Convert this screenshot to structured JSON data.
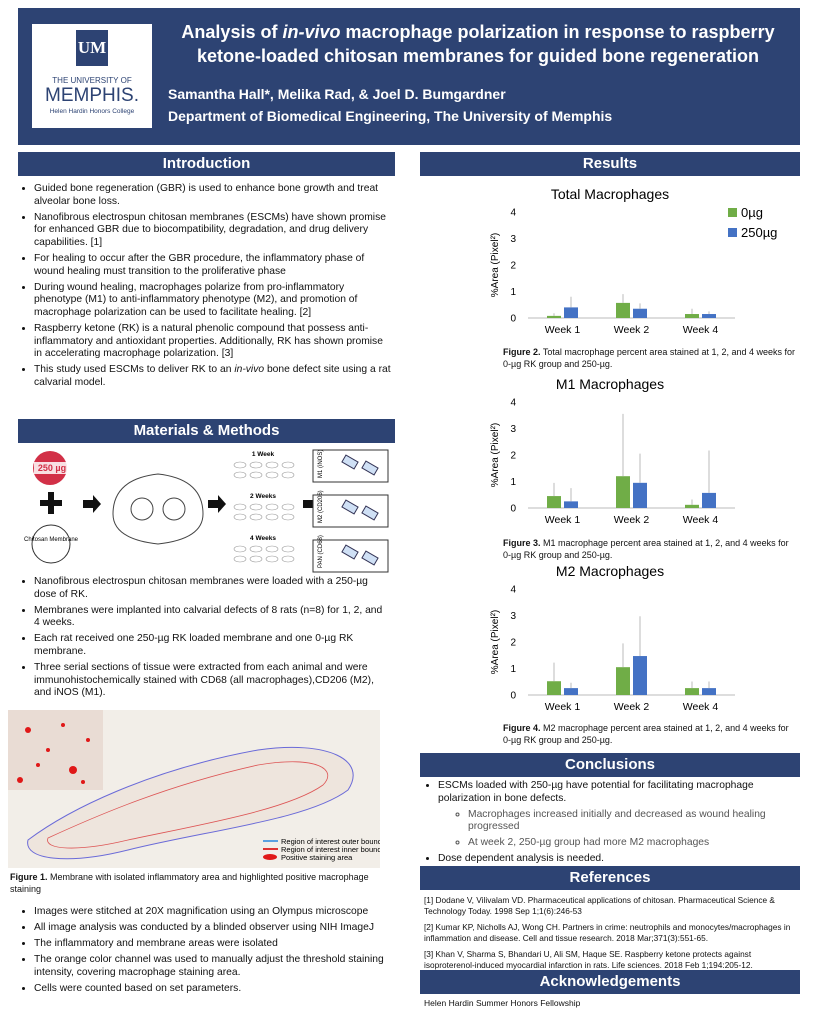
{
  "header": {
    "logo": {
      "mark": "UM",
      "line1": "THE UNIVERSITY OF",
      "line2": "MEMPHIS.",
      "line3": "Helen Hardin Honors College"
    },
    "title": [
      "Analysis of ",
      "in-vivo",
      " macrophage polarization in response to raspberry ketone-loaded chitosan membranes for guided bone regeneration"
    ],
    "authors": "Samantha Hall*, Melika Rad, & Joel D. Bumgardner",
    "affiliation": "Department of Biomedical Engineering, The University of Memphis"
  },
  "introduction": {
    "heading": "Introduction",
    "bullets": [
      "Guided bone regeneration (GBR) is used to enhance bone growth and treat alveolar bone loss.",
      "Nanofibrous electrospun chitosan membranes (ESCMs) have shown promise for enhanced GBR due to biocompatibility, degradation, and drug delivery capabilities. [1]",
      "For healing to occur after the GBR procedure, the inflammatory phase of wound healing must transition to the proliferative phase",
      "During wound healing, macrophages polarize from pro-inflammatory phenotype (M1) to anti-inflammatory phenotype (M2), and promotion of macrophage polarization can be used to facilitate healing. [2]",
      "Raspberry ketone (RK) is a natural phenolic compound that possess anti-inflammatory and antioxidant properties. Additionally, RK has shown promise in accelerating macrophage polarization. [3]",
      [
        "This study used ESCMs to deliver RK to an ",
        "in-vivo",
        " bone defect site using a rat calvarial model."
      ]
    ]
  },
  "methods": {
    "heading": "Materials & Methods",
    "diagram": {
      "dose": "250 µg",
      "membrane": "Chitosan Membrane",
      "weeks": [
        "1 Week",
        "2 Weeks",
        "4 Weeks"
      ],
      "stains": [
        "M1 (iNOS)",
        "M2 (CD206)",
        "PAN (CD68)"
      ]
    },
    "bullets": [
      "Nanofibrous electrospun chitosan membranes were loaded with a 250-µg dose of RK.",
      "Membranes were implanted into calvarial defects of 8 rats (n=8) for 1, 2, and 4 weeks.",
      "Each rat received one 250-µg RK loaded membrane and one 0-µg RK membrane.",
      "Three serial sections of tissue were extracted from each animal and were immunohistochemically stained with CD68 (all macrophages),CD206 (M2), and iNOS (M1)."
    ],
    "figure": {
      "legend": [
        "Region of interest outer boundary",
        "Region of interest inner boundary",
        "Positive staining area"
      ],
      "label": "Figure 1.",
      "caption": " Membrane with isolated inflammatory area and highlighted positive macrophage staining"
    },
    "bullets2": [
      "Images were stitched at 20X magnification using an Olympus microscope",
      "All image analysis was conducted by a blinded observer using NIH ImageJ",
      "The inflammatory and membrane areas were isolated",
      "The orange color channel was used to manually adjust the threshold staining intensity, covering macrophage staining area.",
      "Cells were counted based on set parameters."
    ]
  },
  "results": {
    "heading": "Results",
    "figures": [
      {
        "label": "Figure 2.",
        "caption": " Total macrophage percent area stained at 1, 2, and 4 weeks for 0-µg RK group and 250-µg."
      },
      {
        "label": "Figure 3.",
        "caption": " M1 macrophage percent area stained at 1, 2, and 4 weeks for 0-µg RK group and 250-µg."
      },
      {
        "label": "Figure 4.",
        "caption": " M2 macrophage percent area stained at 1, 2, and 4 weeks for 0-µg RK group and 250-µg."
      }
    ]
  },
  "chart_data": [
    {
      "type": "bar",
      "title": "Total Macrophages",
      "ylabel": "%Area (Pixel²)",
      "categories": [
        "Week 1",
        "Week 2",
        "Week 4"
      ],
      "series": [
        {
          "name": "0µg",
          "color": "#70ad47",
          "values": [
            0.08,
            0.57,
            0.15
          ],
          "errors": [
            0.1,
            0.33,
            0.2
          ]
        },
        {
          "name": "250µg",
          "color": "#4472c4",
          "values": [
            0.4,
            0.35,
            0.15
          ],
          "errors": [
            0.4,
            0.2,
            0.1
          ]
        }
      ],
      "ylim": [
        0,
        4
      ],
      "yticks": [
        0,
        1,
        2,
        3,
        4
      ],
      "legend": "upper right"
    },
    {
      "type": "bar",
      "title": "M1 Macrophages",
      "ylabel": "%Area (Pixel²)",
      "categories": [
        "Week 1",
        "Week 2",
        "Week 4"
      ],
      "series": [
        {
          "color": "#70ad47",
          "values": [
            0.45,
            1.2,
            0.12
          ],
          "errors": [
            0.5,
            2.35,
            0.2
          ]
        },
        {
          "color": "#4472c4",
          "values": [
            0.25,
            0.95,
            0.57
          ],
          "errors": [
            0.5,
            1.1,
            1.6
          ]
        }
      ],
      "ylim": [
        0,
        4
      ],
      "yticks": [
        0,
        1,
        2,
        3,
        4
      ]
    },
    {
      "type": "bar",
      "title": "M2 Macrophages",
      "ylabel": "%Area (Pixel²)",
      "categories": [
        "Week 1",
        "Week 2",
        "Week 4"
      ],
      "series": [
        {
          "color": "#70ad47",
          "values": [
            0.52,
            1.05,
            0.26
          ],
          "errors": [
            0.7,
            0.9,
            0.25
          ]
        },
        {
          "color": "#4472c4",
          "values": [
            0.26,
            1.47,
            0.26
          ],
          "errors": [
            0.2,
            1.5,
            0.25
          ]
        }
      ],
      "ylim": [
        0,
        4
      ],
      "yticks": [
        0,
        1,
        2,
        3,
        4
      ]
    }
  ],
  "conclusions": {
    "heading": "Conclusions",
    "items": [
      {
        "text": "ESCMs loaded with 250-µg have potential for facilitating macrophage polarization in bone defects.",
        "sub": [
          "Macrophages increased initially and decreased as wound healing progressed",
          "At week 2, 250-µg group had more M2 macrophages"
        ]
      },
      {
        "text": "Dose dependent analysis is needed."
      }
    ]
  },
  "references": {
    "heading": "References",
    "items": [
      "[1] Dodane V, Vilivalam VD. Pharmaceutical applications of chitosan. Pharmaceutical Science & Technology Today. 1998 Sep 1;1(6):246-53",
      "[2] Kumar KP, Nicholls AJ, Wong CH. Partners in crime: neutrophils and monocytes/macrophages in inflammation and disease. Cell and tissue research. 2018 Mar;371(3):551-65.",
      "[3]  Khan V, Sharma S, Bhandari U, Ali SM, Haque SE. Raspberry ketone protects against isoproterenol-induced myocardial infarction in rats. Life sciences. 2018 Feb 1;194:205-12."
    ]
  },
  "acknowledgements": {
    "heading": "Acknowledgements",
    "text": "Helen Hardin Summer Honors Fellowship"
  }
}
